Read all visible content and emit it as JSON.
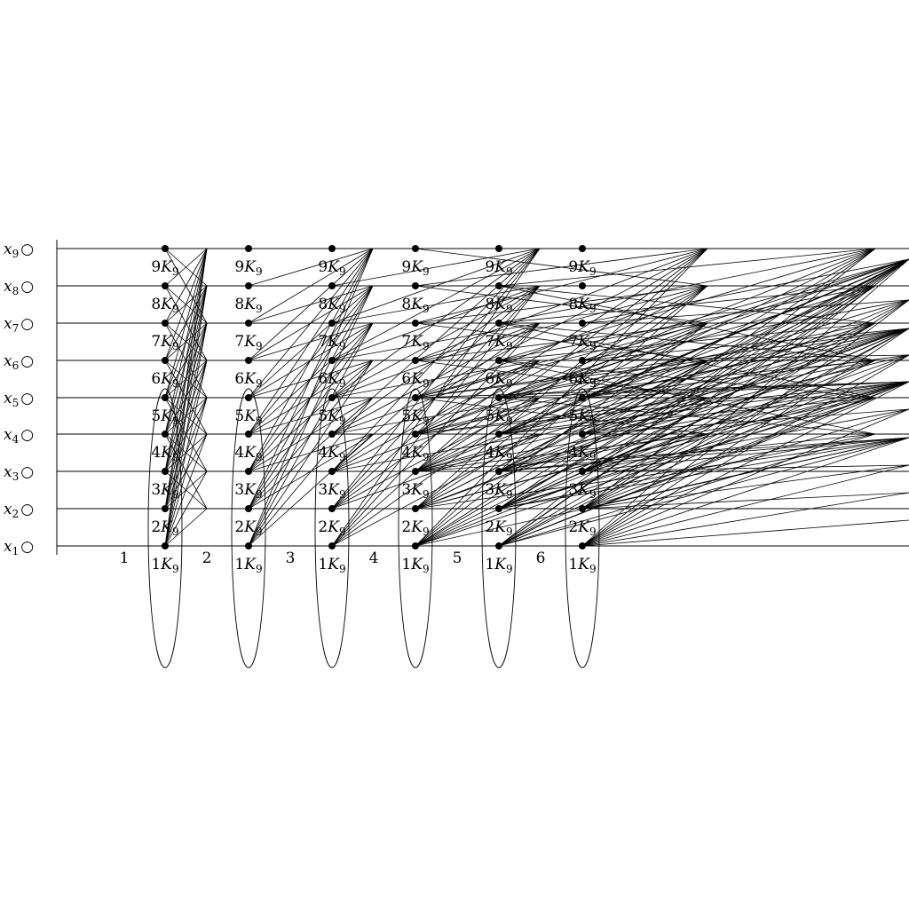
{
  "rows": [
    {
      "var": "x",
      "sub": "1",
      "marker": "○"
    },
    {
      "var": "x",
      "sub": "2",
      "marker": "○"
    },
    {
      "var": "x",
      "sub": "3",
      "marker": "○"
    },
    {
      "var": "x",
      "sub": "4",
      "marker": "○"
    },
    {
      "var": "x",
      "sub": "5",
      "marker": "○"
    },
    {
      "var": "x",
      "sub": "6",
      "marker": "○"
    },
    {
      "var": "x",
      "sub": "7",
      "marker": "○"
    },
    {
      "var": "x",
      "sub": "8",
      "marker": "○"
    },
    {
      "var": "x",
      "sub": "9",
      "marker": "○"
    }
  ],
  "columns": [
    {
      "label": "1"
    },
    {
      "label": "2"
    },
    {
      "label": "3"
    },
    {
      "label": "4"
    },
    {
      "label": "5"
    },
    {
      "label": "6"
    }
  ],
  "node_label": {
    "letter": "K",
    "sub": "9"
  },
  "node_multipliers": [
    "1",
    "2",
    "3",
    "4",
    "5",
    "6",
    "7",
    "8",
    "9"
  ],
  "colors": {
    "ink": "#000000",
    "background": "#ffffff"
  }
}
